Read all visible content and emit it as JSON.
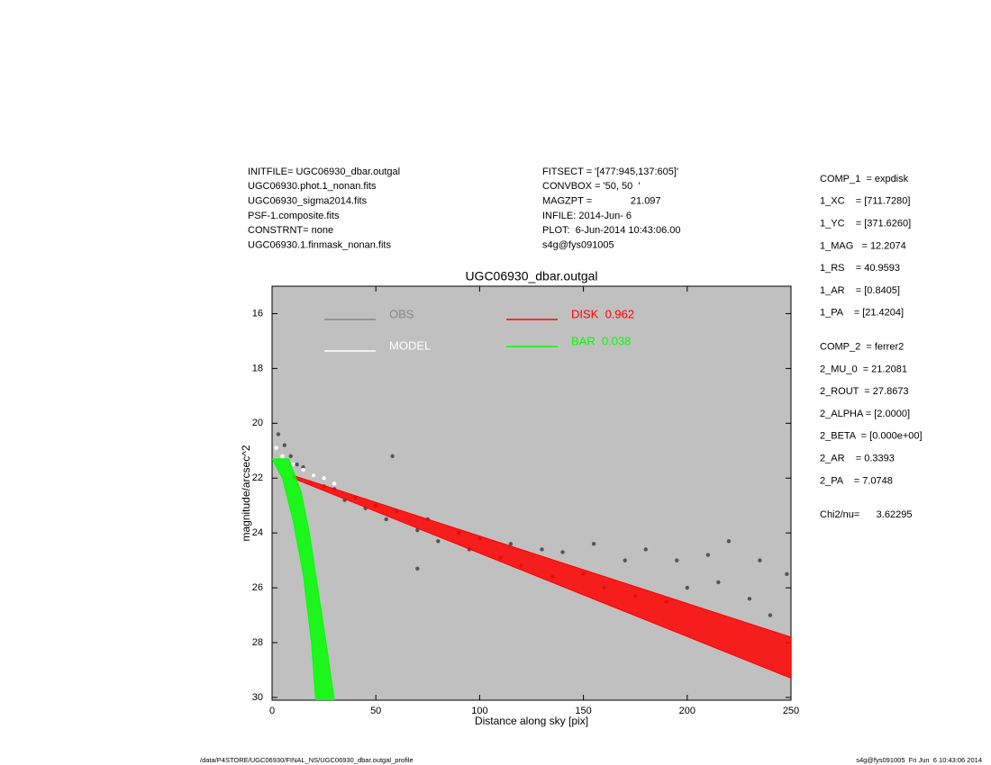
{
  "header": {
    "left": [
      "INITFILE= UGC06930_dbar.outgal",
      "UGC06930.phot.1_nonan.fits",
      "UGC06930_sigma2014.fits",
      "PSF-1.composite.fits",
      "CONSTRNT= none",
      "UGC06930.1.finmask_nonan.fits"
    ],
    "center": [
      "FITSECT = '[477:945,137:605]'",
      "CONVBOX = '50, 50  '",
      "MAGZPT =              21.097",
      "INFILE: 2014-Jun- 6",
      "PLOT:  6-Jun-2014 10:43:06.00",
      "s4g@fys091005"
    ]
  },
  "params": [
    [
      "COMP_1  = expdisk",
      "1_XC    = [711.7280]",
      "1_YC    = [371.6260]",
      "1_MAG   = 12.2074",
      "1_RS    = 40.9593",
      "1_AR    = [0.8405]",
      "1_PA    = [21.4204]"
    ],
    [
      "COMP_2  = ferrer2",
      "2_MU_0  = 21.2081",
      "2_ROUT  = 27.8673",
      "2_ALPHA = [2.0000]",
      "2_BETA  = [0.000e+00]",
      "2_AR    = 0.3393",
      "2_PA    = 7.0748"
    ],
    [
      "Chi2/nu=      3.62295"
    ]
  ],
  "footer": {
    "left": "/data/P4STORE/UGC06930/FINAL_NS/UGC06930_dbar.outgal_profile",
    "right": "s4g@fys091005  Fri Jun  6 10:43:06 2014"
  },
  "chart_data": {
    "type": "scatter",
    "title": "UGC06930_dbar.outgal",
    "x_label": "Distance along sky [pix]",
    "y_label": "magnitude/arcsec^2",
    "xlim": [
      0,
      250
    ],
    "xticks": [
      0,
      50,
      100,
      150,
      200,
      250
    ],
    "ylim": [
      30.1,
      15
    ],
    "yticks": [
      16,
      18,
      20,
      22,
      24,
      26,
      28,
      30
    ],
    "background": "#c0c0c0",
    "series": [
      {
        "name": "OBS",
        "color": "#555555",
        "legend_color": "#888888",
        "mark": "points",
        "x": [
          3,
          6,
          9,
          12,
          15,
          20,
          25,
          30,
          35,
          40,
          45,
          50,
          55,
          60,
          70,
          75,
          80,
          90,
          95,
          100,
          110,
          115,
          120,
          130,
          135,
          140,
          150,
          155,
          160,
          170,
          175,
          180,
          190,
          195,
          200,
          210,
          215,
          220,
          230,
          235,
          240,
          248,
          58,
          70
        ],
        "values": [
          20.4,
          20.8,
          21.2,
          21.5,
          21.6,
          21.9,
          22.3,
          22.4,
          22.8,
          22.7,
          23.1,
          23.0,
          23.5,
          23.2,
          23.9,
          23.5,
          24.3,
          24.0,
          24.6,
          24.2,
          24.9,
          24.4,
          25.2,
          24.6,
          25.6,
          24.7,
          25.5,
          24.4,
          26.0,
          25.0,
          26.3,
          24.6,
          26.5,
          25.0,
          26.0,
          24.8,
          25.8,
          24.3,
          26.4,
          25.0,
          27.0,
          25.5,
          21.2,
          25.3
        ]
      },
      {
        "name": "MODEL",
        "color": "#ffffff",
        "mark": "points",
        "x": [
          2,
          5,
          10,
          15,
          20,
          25,
          30
        ],
        "values": [
          20.9,
          21.2,
          21.5,
          21.7,
          21.9,
          22.0,
          22.2
        ]
      },
      {
        "name": "DISK  0.962",
        "color": "#ff0000",
        "mark": "band",
        "x": [
          10,
          250,
          250,
          10
        ],
        "values": [
          21.9,
          27.8,
          29.3,
          22.0
        ]
      },
      {
        "name": "BAR  0.038",
        "color": "#00ff00",
        "mark": "band",
        "x": [
          0,
          5,
          10,
          15,
          19,
          21,
          30,
          26,
          22,
          18,
          14,
          8
        ],
        "values": [
          21.3,
          22.0,
          23.5,
          25.5,
          28.0,
          30.1,
          30.1,
          28.0,
          26.0,
          24.0,
          22.5,
          21.3
        ]
      }
    ]
  }
}
